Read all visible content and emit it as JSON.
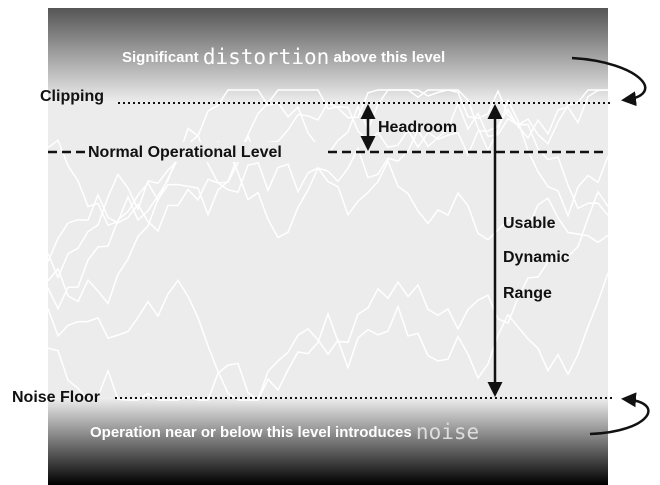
{
  "top_banner": {
    "prefix": "Significant",
    "emphasis": "distortion",
    "suffix": "above this level"
  },
  "bottom_banner": {
    "prefix": "Operation near or below this level introduces",
    "emphasis": "noise"
  },
  "levels": {
    "clipping": "Clipping",
    "normal": "Normal Operational Level",
    "noise_floor": "Noise Floor"
  },
  "headroom": "Headroom",
  "dynamic_range": [
    "Usable",
    "Dynamic",
    "Range"
  ]
}
